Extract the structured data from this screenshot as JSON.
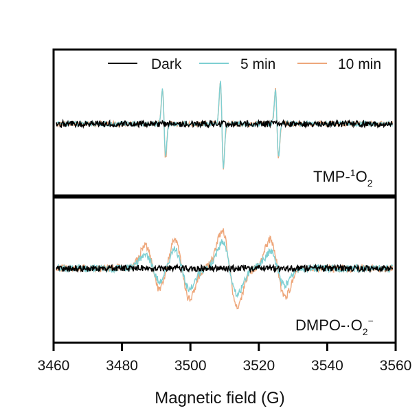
{
  "chart_data": {
    "type": "line",
    "xlabel": "Magnetic field (G)",
    "xlim": [
      3460,
      3560
    ],
    "xticks": [
      3460,
      3480,
      3500,
      3520,
      3540,
      3560
    ],
    "legend": {
      "placement": "top",
      "entries": [
        "Dark",
        "5 min",
        "10 min"
      ]
    },
    "series_colors": {
      "Dark": "#000000",
      "5 min": "#7ecfd2",
      "10 min": "#eea77b"
    },
    "panels": [
      {
        "label_main": "TMP-",
        "label_sup": "1",
        "label_after": "O",
        "label_sub": "2",
        "series": [
          {
            "name": "Dark",
            "x": [
              3460,
              3492.3,
              3509.2,
              3525.3,
              3560
            ],
            "y": [
              0,
              0,
              0,
              0,
              0
            ]
          },
          {
            "name": "5 min",
            "x": [
              3460,
              3492.3,
              3509.2,
              3525.3,
              3560
            ],
            "y": [
              0,
              0.78,
              1.0,
              0.78,
              0
            ]
          },
          {
            "name": "10 min",
            "x": [
              3460,
              3492.3,
              3509.2,
              3525.3,
              3560
            ],
            "y": [
              0,
              0.82,
              1.02,
              0.8,
              0
            ]
          }
        ]
      },
      {
        "label_main": "DMPO-·O",
        "label_sub": "2",
        "label_sup": "−",
        "series": [
          {
            "name": "Dark",
            "x": [
              3460,
              3489,
              3497.5,
              3511.5,
              3525.5,
              3560
            ],
            "y": [
              0,
              0,
              0,
              0,
              0,
              0
            ]
          },
          {
            "name": "5 min",
            "x": [
              3460,
              3489,
              3497.5,
              3511.5,
              3525.5,
              3560
            ],
            "y": [
              0,
              0.45,
              0.65,
              0.85,
              0.55,
              0
            ]
          },
          {
            "name": "10 min",
            "x": [
              3460,
              3489,
              3497.5,
              3511.5,
              3525.5,
              3560
            ],
            "y": [
              0,
              0.75,
              1.0,
              1.25,
              0.95,
              0
            ]
          }
        ]
      }
    ]
  }
}
